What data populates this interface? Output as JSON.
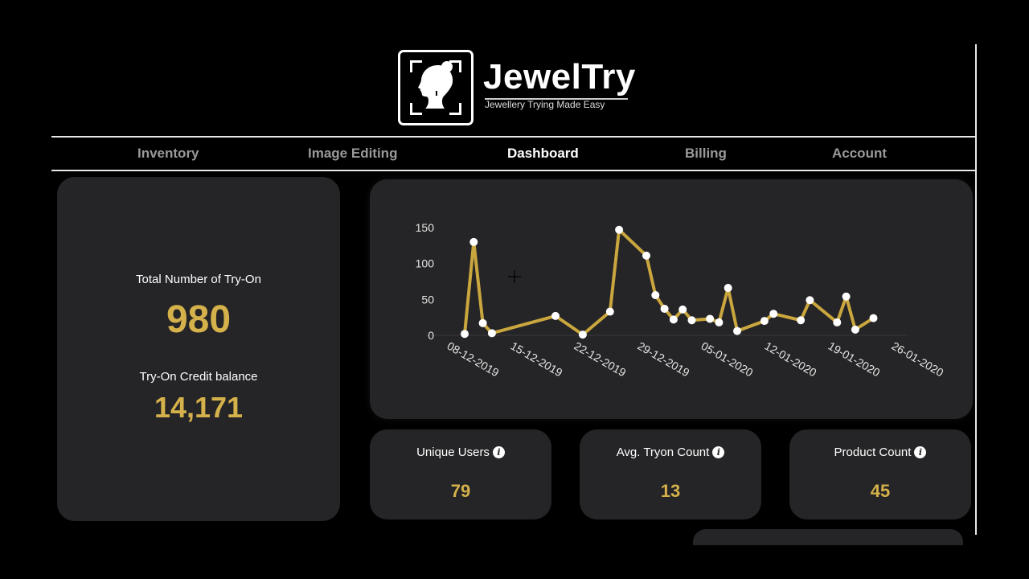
{
  "brand": {
    "name": "JewelTry",
    "tagline": "Jewellery Trying Made Easy",
    "accent_color": "#d4b14a",
    "card_color": "#252426"
  },
  "nav": {
    "items": [
      {
        "label": "Inventory",
        "active": false
      },
      {
        "label": "Image Editing",
        "active": false
      },
      {
        "label": "Dashboard",
        "active": true
      },
      {
        "label": "Billing",
        "active": false
      },
      {
        "label": "Account",
        "active": false
      }
    ]
  },
  "summary": {
    "total_tryon_label": "Total Number of Try-On",
    "total_tryon_value": "980",
    "credit_label": "Try-On Credit balance",
    "credit_value": "14,171"
  },
  "kpis": [
    {
      "label": "Unique Users",
      "value": "79",
      "icon": "info-icon"
    },
    {
      "label": "Avg. Tryon Count",
      "value": "13",
      "icon": "info-icon"
    },
    {
      "label": "Product Count",
      "value": "45",
      "icon": "info-icon"
    }
  ],
  "chart_data": {
    "type": "line",
    "title": "",
    "xlabel": "",
    "ylabel": "",
    "ylim": [
      0,
      150
    ],
    "yticks": [
      0,
      50,
      100,
      150
    ],
    "xtick_labels": [
      "08-12-2019",
      "15-12-2019",
      "22-12-2019",
      "29-12-2019",
      "05-01-2020",
      "12-01-2020",
      "19-01-2020",
      "26-01-2020"
    ],
    "grid": false,
    "line_color": "#c9a63e",
    "marker_color": "#ffffff",
    "x": [
      "08-12-2019",
      "09-12-2019",
      "10-12-2019",
      "11-12-2019",
      "18-12-2019",
      "21-12-2019",
      "24-12-2019",
      "25-12-2019",
      "28-12-2019",
      "29-12-2019",
      "30-12-2019",
      "31-12-2019",
      "01-01-2020",
      "02-01-2020",
      "04-01-2020",
      "05-01-2020",
      "06-01-2020",
      "07-01-2020",
      "10-01-2020",
      "11-01-2020",
      "14-01-2020",
      "15-01-2020",
      "18-01-2020",
      "19-01-2020",
      "20-01-2020",
      "22-01-2020"
    ],
    "day_offsets": [
      0,
      1,
      2,
      3,
      10,
      13,
      16,
      17,
      20,
      21,
      22,
      23,
      24,
      25,
      27,
      28,
      29,
      30,
      33,
      34,
      37,
      38,
      41,
      42,
      43,
      45
    ],
    "values": [
      2,
      130,
      17,
      3,
      27,
      1,
      33,
      147,
      111,
      56,
      37,
      22,
      36,
      21,
      23,
      18,
      66,
      6,
      20,
      30,
      21,
      49,
      18,
      54,
      8,
      24
    ]
  }
}
